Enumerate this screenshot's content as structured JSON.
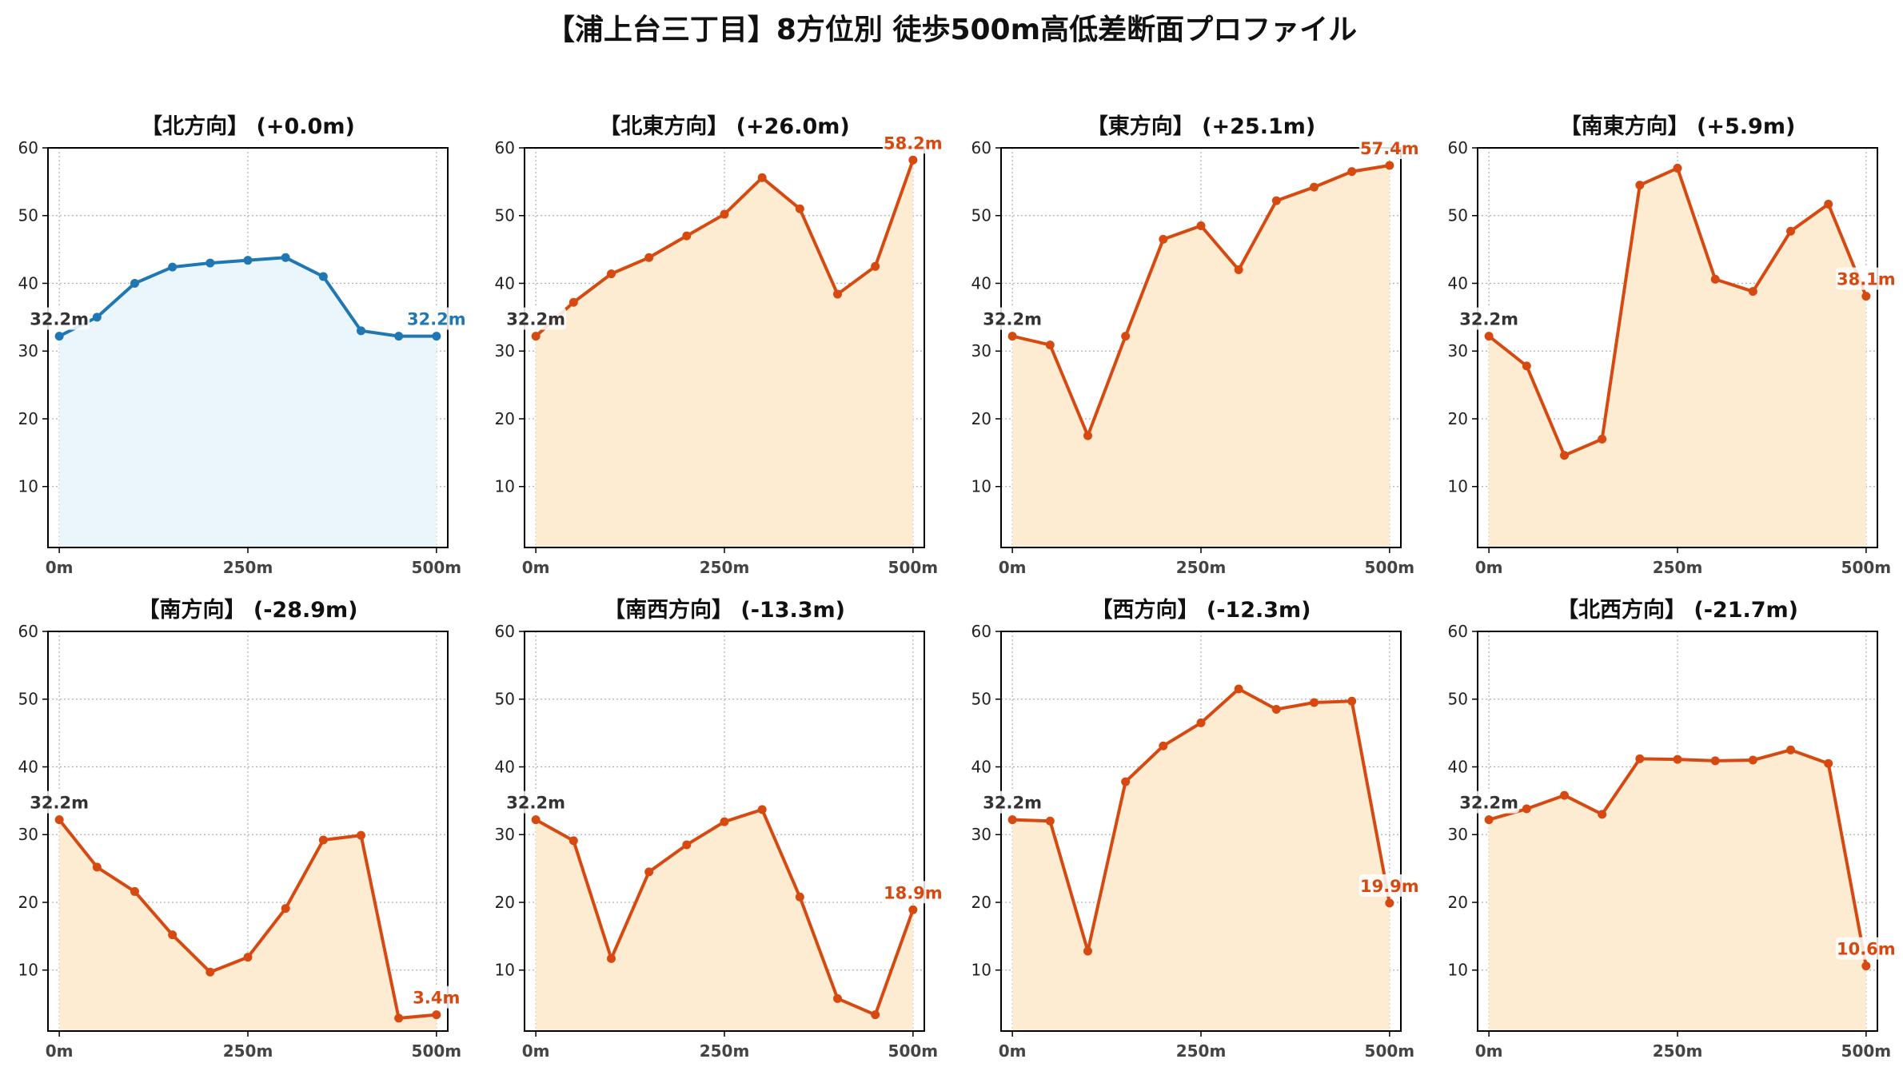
{
  "title": "【浦上台三丁目】8方位別 徒歩500m高低差断面プロファイル",
  "colors": {
    "flat": "#1f77b4",
    "flat_fill": "#eaf6fb",
    "slope": "#d64a12",
    "slope_fill": "#fdecd2",
    "start_label": "#333333"
  },
  "chart_data": [
    {
      "type": "area",
      "title": "【北方向】 (+0.0m)",
      "color_key": "flat",
      "x": [
        0,
        50,
        100,
        150,
        200,
        250,
        300,
        350,
        400,
        450,
        500
      ],
      "values": [
        32.2,
        35.0,
        40.0,
        42.4,
        43.0,
        43.4,
        43.8,
        41.0,
        33.0,
        32.2,
        32.2
      ],
      "start_label": "32.2m",
      "end_label": "32.2m",
      "xticks": [
        "0m",
        "250m",
        "500m"
      ],
      "yticks": [
        10,
        20,
        30,
        40,
        50,
        60
      ],
      "ylim": [
        1,
        60
      ],
      "xlim": [
        -15,
        515
      ],
      "grid": true
    },
    {
      "type": "area",
      "title": "【北東方向】 (+26.0m)",
      "color_key": "slope",
      "x": [
        0,
        50,
        100,
        150,
        200,
        250,
        300,
        350,
        400,
        450,
        500
      ],
      "values": [
        32.2,
        37.2,
        41.4,
        43.8,
        47.0,
        50.2,
        55.6,
        51.0,
        38.4,
        42.5,
        58.2
      ],
      "start_label": "32.2m",
      "end_label": "58.2m",
      "xticks": [
        "0m",
        "250m",
        "500m"
      ],
      "yticks": [
        10,
        20,
        30,
        40,
        50,
        60
      ],
      "ylim": [
        1,
        60
      ],
      "xlim": [
        -15,
        515
      ],
      "grid": true
    },
    {
      "type": "area",
      "title": "【東方向】 (+25.1m)",
      "color_key": "slope",
      "x": [
        0,
        50,
        100,
        150,
        200,
        250,
        300,
        350,
        400,
        450,
        500
      ],
      "values": [
        32.2,
        30.9,
        17.5,
        32.2,
        46.5,
        48.5,
        42.0,
        52.2,
        54.2,
        56.5,
        57.4
      ],
      "start_label": "32.2m",
      "end_label": "57.4m",
      "xticks": [
        "0m",
        "250m",
        "500m"
      ],
      "yticks": [
        10,
        20,
        30,
        40,
        50,
        60
      ],
      "ylim": [
        1,
        60
      ],
      "xlim": [
        -15,
        515
      ],
      "grid": true
    },
    {
      "type": "area",
      "title": "【南東方向】 (+5.9m)",
      "color_key": "slope",
      "x": [
        0,
        50,
        100,
        150,
        200,
        250,
        300,
        350,
        400,
        450,
        500
      ],
      "values": [
        32.2,
        27.8,
        14.6,
        17.0,
        54.5,
        57.0,
        40.6,
        38.8,
        47.7,
        51.7,
        38.1
      ],
      "start_label": "32.2m",
      "end_label": "38.1m",
      "xticks": [
        "0m",
        "250m",
        "500m"
      ],
      "yticks": [
        10,
        20,
        30,
        40,
        50,
        60
      ],
      "ylim": [
        1,
        60
      ],
      "xlim": [
        -15,
        515
      ],
      "grid": true
    },
    {
      "type": "area",
      "title": "【南方向】 (-28.9m)",
      "color_key": "slope",
      "x": [
        0,
        50,
        100,
        150,
        200,
        250,
        300,
        350,
        400,
        450,
        500
      ],
      "values": [
        32.2,
        25.2,
        21.6,
        15.2,
        9.7,
        11.9,
        19.1,
        29.2,
        29.9,
        2.9,
        3.4
      ],
      "start_label": "32.2m",
      "end_label": "3.4m",
      "xticks": [
        "0m",
        "250m",
        "500m"
      ],
      "yticks": [
        10,
        20,
        30,
        40,
        50,
        60
      ],
      "ylim": [
        1,
        60
      ],
      "xlim": [
        -15,
        515
      ],
      "grid": true
    },
    {
      "type": "area",
      "title": "【南西方向】 (-13.3m)",
      "color_key": "slope",
      "x": [
        0,
        50,
        100,
        150,
        200,
        250,
        300,
        350,
        400,
        450,
        500
      ],
      "values": [
        32.2,
        29.1,
        11.7,
        24.5,
        28.5,
        31.9,
        33.7,
        20.8,
        5.8,
        3.4,
        18.9
      ],
      "start_label": "32.2m",
      "end_label": "18.9m",
      "xticks": [
        "0m",
        "250m",
        "500m"
      ],
      "yticks": [
        10,
        20,
        30,
        40,
        50,
        60
      ],
      "ylim": [
        1,
        60
      ],
      "xlim": [
        -15,
        515
      ],
      "grid": true
    },
    {
      "type": "area",
      "title": "【西方向】 (-12.3m)",
      "color_key": "slope",
      "x": [
        0,
        50,
        100,
        150,
        200,
        250,
        300,
        350,
        400,
        450,
        500
      ],
      "values": [
        32.2,
        32.0,
        12.8,
        37.8,
        43.1,
        46.5,
        51.5,
        48.5,
        49.5,
        49.7,
        19.9
      ],
      "start_label": "32.2m",
      "end_label": "19.9m",
      "xticks": [
        "0m",
        "250m",
        "500m"
      ],
      "yticks": [
        10,
        20,
        30,
        40,
        50,
        60
      ],
      "ylim": [
        1,
        60
      ],
      "xlim": [
        -15,
        515
      ],
      "grid": true
    },
    {
      "type": "area",
      "title": "【北西方向】 (-21.7m)",
      "color_key": "slope",
      "x": [
        0,
        50,
        100,
        150,
        200,
        250,
        300,
        350,
        400,
        450,
        500
      ],
      "values": [
        32.2,
        33.8,
        35.8,
        33.0,
        41.2,
        41.1,
        40.9,
        41.0,
        42.5,
        40.5,
        10.6
      ],
      "start_label": "32.2m",
      "end_label": "10.6m",
      "xticks": [
        "0m",
        "250m",
        "500m"
      ],
      "yticks": [
        10,
        20,
        30,
        40,
        50,
        60
      ],
      "ylim": [
        1,
        60
      ],
      "xlim": [
        -15,
        515
      ],
      "grid": true
    }
  ]
}
